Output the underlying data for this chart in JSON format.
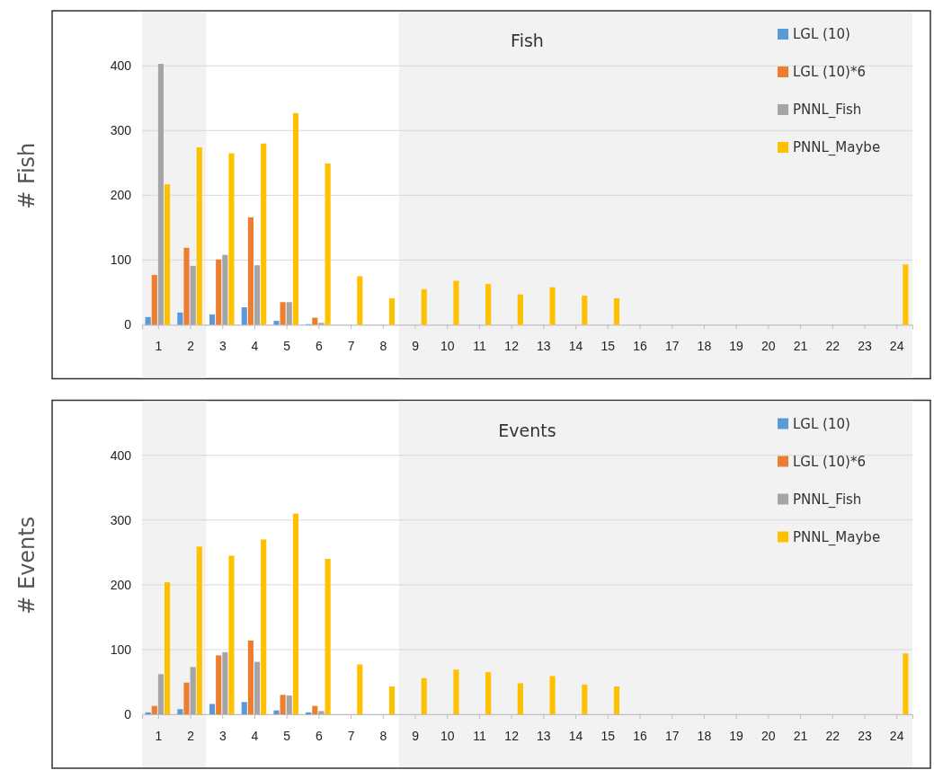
{
  "chart_data": [
    {
      "type": "bar",
      "title": "Fish",
      "ylabel": "# Fish",
      "x": [
        1,
        2,
        3,
        4,
        5,
        6,
        7,
        8,
        9,
        10,
        11,
        12,
        13,
        14,
        15,
        16,
        17,
        18,
        19,
        20,
        21,
        22,
        23,
        24
      ],
      "xlim": [
        0.5,
        24.5
      ],
      "xticks": [
        1,
        2,
        3,
        4,
        5,
        6,
        7,
        8,
        9,
        10,
        11,
        12,
        13,
        14,
        15,
        16,
        17,
        18,
        19,
        20,
        21,
        22,
        23,
        24
      ],
      "ylim": [
        0,
        460
      ],
      "yticks": [
        0,
        100,
        200,
        300,
        400
      ],
      "grid": "y",
      "legend": "top right",
      "bands": [
        {
          "axis": "x",
          "from": 0.5,
          "to": 2.5,
          "color": "#f2f2f2"
        },
        {
          "axis": "x",
          "from": 8.5,
          "to": 24.5,
          "color": "#f2f2f2"
        }
      ],
      "series": [
        {
          "name": "LGL (10)",
          "color": "#5b9bd5",
          "values": [
            12,
            19,
            16,
            27,
            6,
            1,
            0,
            0,
            0,
            0,
            0,
            0,
            0,
            0,
            0,
            0,
            0,
            0,
            0,
            0,
            0,
            0,
            0,
            0
          ]
        },
        {
          "name": "LGL (10)*6",
          "color": "#ed7d31",
          "values": [
            77,
            119,
            101,
            166,
            35,
            11,
            0,
            0,
            0,
            0,
            0,
            0,
            0,
            0,
            0,
            0,
            0,
            0,
            0,
            0,
            0,
            0,
            0,
            0
          ]
        },
        {
          "name": "PNNL_Fish",
          "color": "#a5a5a5",
          "values": [
            403,
            91,
            108,
            92,
            35,
            3,
            0,
            0,
            0,
            0,
            0,
            0,
            0,
            0,
            0,
            0,
            0,
            0,
            0,
            0,
            0,
            0,
            0,
            0
          ]
        },
        {
          "name": "PNNL_Maybe",
          "color": "#ffc000",
          "values": [
            217,
            274,
            265,
            280,
            327,
            249,
            75,
            41,
            55,
            68,
            63,
            47,
            58,
            45,
            41,
            0,
            0,
            0,
            0,
            0,
            0,
            0,
            0,
            93
          ]
        }
      ]
    },
    {
      "type": "bar",
      "title": "Events",
      "ylabel": "# Events",
      "x": [
        1,
        2,
        3,
        4,
        5,
        6,
        7,
        8,
        9,
        10,
        11,
        12,
        13,
        14,
        15,
        16,
        17,
        18,
        19,
        20,
        21,
        22,
        23,
        24
      ],
      "xlim": [
        0.5,
        24.5
      ],
      "xticks": [
        1,
        2,
        3,
        4,
        5,
        6,
        7,
        8,
        9,
        10,
        11,
        12,
        13,
        14,
        15,
        16,
        17,
        18,
        19,
        20,
        21,
        22,
        23,
        24
      ],
      "ylim": [
        0,
        460
      ],
      "yticks": [
        0,
        100,
        200,
        300,
        400
      ],
      "grid": "y",
      "legend": "top right",
      "bands": [
        {
          "axis": "x",
          "from": 0.5,
          "to": 2.5,
          "color": "#f2f2f2"
        },
        {
          "axis": "x",
          "from": 8.5,
          "to": 24.5,
          "color": "#f2f2f2"
        }
      ],
      "series": [
        {
          "name": "LGL (10)",
          "color": "#5b9bd5",
          "values": [
            3,
            8,
            16,
            19,
            6,
            3,
            0,
            0,
            0,
            0,
            0,
            0,
            0,
            0,
            0,
            0,
            0,
            0,
            0,
            0,
            0,
            0,
            0,
            0
          ]
        },
        {
          "name": "LGL (10)*6",
          "color": "#ed7d31",
          "values": [
            13,
            49,
            91,
            114,
            30,
            13,
            0,
            0,
            0,
            0,
            0,
            0,
            0,
            0,
            0,
            0,
            0,
            0,
            0,
            0,
            0,
            0,
            0,
            0
          ]
        },
        {
          "name": "PNNL_Fish",
          "color": "#a5a5a5",
          "values": [
            62,
            73,
            96,
            81,
            29,
            5,
            0,
            0,
            0,
            0,
            0,
            0,
            0,
            0,
            0,
            0,
            0,
            0,
            0,
            0,
            0,
            0,
            0,
            0
          ]
        },
        {
          "name": "PNNL_Maybe",
          "color": "#ffc000",
          "values": [
            204,
            259,
            245,
            270,
            310,
            240,
            77,
            43,
            56,
            69,
            65,
            48,
            59,
            46,
            43,
            0,
            0,
            0,
            0,
            0,
            0,
            0,
            0,
            94
          ]
        }
      ]
    }
  ]
}
